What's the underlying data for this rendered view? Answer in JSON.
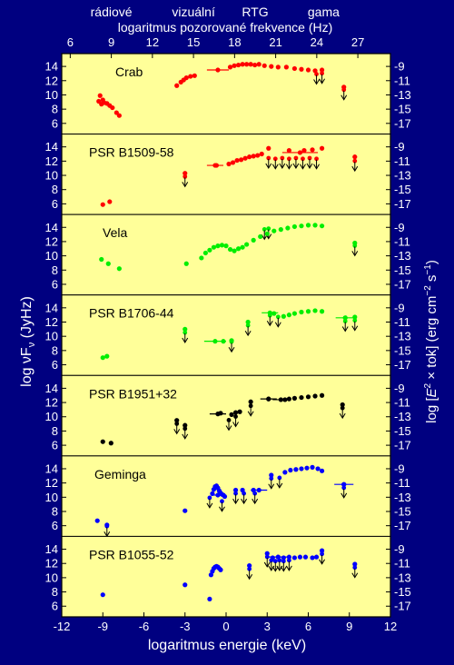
{
  "chart_data": {
    "type": "scatter",
    "x_axis_bottom": {
      "label": "logaritmus energie (keV)",
      "range": [
        -12,
        12
      ],
      "ticks": [
        -12,
        -9,
        -6,
        -3,
        0,
        3,
        6,
        9,
        12
      ]
    },
    "x_axis_top": {
      "label": "logaritmus pozorované frekvence (Hz)",
      "ticks": [
        6,
        9,
        12,
        15,
        18,
        21,
        24,
        27
      ],
      "band_labels": [
        {
          "text": "rádiové",
          "at_hz": 9
        },
        {
          "text": "vizuální",
          "at_hz": 15
        },
        {
          "text": "RTG",
          "at_hz": 19.5
        },
        {
          "text": "gama",
          "at_hz": 24.5
        }
      ]
    },
    "y_axis_left": {
      "label": "log νF",
      "label_subscript": "ν",
      "label_unit": " (JyHz)",
      "range": [
        4.5,
        15.8
      ],
      "ticks": [
        6,
        8,
        10,
        12,
        14
      ]
    },
    "y_axis_right": {
      "label_prefix": "log [",
      "label_E": "E",
      "label_sup": "2",
      "label_mid": " × tok] (erg cm",
      "label_sup2": "−2",
      "label_mid2": " s",
      "label_sup3": "−1",
      "label_end": ")",
      "ticks": [
        "-9",
        "-11",
        "-13",
        "-15",
        "-17"
      ],
      "ticks_at_left_value": [
        14,
        12,
        10,
        8,
        6
      ]
    },
    "colors": {
      "background": "#000080",
      "panel": "#ffff99",
      "red": "#ff0000",
      "green": "#00ee00",
      "black": "#000000",
      "blue": "#0000ff"
    },
    "panels": [
      {
        "name": "Crab",
        "color": "red",
        "points": [
          [
            -9.2,
            9.9
          ],
          [
            -9.3,
            9.1
          ],
          [
            -9.1,
            8.7
          ],
          [
            -9.0,
            9.3
          ],
          [
            -8.9,
            8.9
          ],
          [
            -8.7,
            8.8
          ],
          [
            -8.5,
            8.5
          ],
          [
            -8.3,
            8.2
          ],
          [
            -8.0,
            7.5
          ],
          [
            -7.8,
            7.1
          ],
          [
            -3.6,
            11.3
          ],
          [
            -3.3,
            11.8
          ],
          [
            -3.1,
            12.1
          ],
          [
            -2.9,
            12.4
          ],
          [
            -2.6,
            12.6
          ],
          [
            -2.3,
            12.7
          ],
          [
            0.3,
            13.9
          ],
          [
            0.6,
            14.1
          ],
          [
            0.9,
            14.2
          ],
          [
            1.2,
            14.3
          ],
          [
            1.5,
            14.3
          ],
          [
            1.8,
            14.3
          ],
          [
            2.1,
            14.2
          ],
          [
            2.4,
            14.3
          ],
          [
            2.8,
            14.1
          ],
          [
            3.3,
            14.0
          ],
          [
            3.8,
            13.9
          ],
          [
            4.4,
            13.9
          ],
          [
            5.0,
            13.7
          ],
          [
            5.5,
            13.6
          ],
          [
            6.0,
            13.5
          ],
          [
            6.5,
            13.4
          ],
          [
            7.0,
            13.5
          ],
          [
            8.6,
            11.1
          ]
        ],
        "errorbars": [
          [
            -0.6,
            13.5,
            0.8
          ]
        ],
        "upper_limits": [
          [
            6.6,
            12.8
          ],
          [
            7.0,
            12.9
          ],
          [
            8.6,
            10.6
          ]
        ]
      },
      {
        "name": "PSR B1509-58",
        "color": "red",
        "points": [
          [
            -9.0,
            5.9
          ],
          [
            -8.5,
            6.3
          ],
          [
            -3.0,
            10.3
          ],
          [
            -0.7,
            11.4
          ],
          [
            0.2,
            11.6
          ],
          [
            0.5,
            11.8
          ],
          [
            0.8,
            12.1
          ],
          [
            1.1,
            12.2
          ],
          [
            1.4,
            12.4
          ],
          [
            1.7,
            12.6
          ],
          [
            2.0,
            12.7
          ],
          [
            2.3,
            12.8
          ],
          [
            2.6,
            13.0
          ],
          [
            3.1,
            13.8
          ],
          [
            4.6,
            13.5
          ],
          [
            5.7,
            13.5
          ],
          [
            6.3,
            13.6
          ],
          [
            7.0,
            13.8
          ],
          [
            9.4,
            12.6
          ]
        ],
        "errorbars": [
          [
            -0.8,
            11.4,
            0.6
          ],
          [
            5.4,
            13.2,
            1.3
          ]
        ],
        "upper_limits": [
          [
            -3.0,
            9.7
          ],
          [
            3.1,
            12.3
          ],
          [
            3.6,
            12.2
          ],
          [
            4.1,
            12.3
          ],
          [
            4.6,
            12.2
          ],
          [
            5.1,
            12.3
          ],
          [
            5.6,
            12.2
          ],
          [
            6.1,
            12.3
          ],
          [
            6.6,
            12.2
          ],
          [
            9.4,
            11.9
          ]
        ]
      },
      {
        "name": "Vela",
        "color": "green",
        "points": [
          [
            -9.1,
            9.5
          ],
          [
            -8.6,
            8.9
          ],
          [
            -7.8,
            8.2
          ],
          [
            -2.9,
            8.9
          ],
          [
            -1.8,
            9.7
          ],
          [
            -1.5,
            10.4
          ],
          [
            -1.2,
            10.8
          ],
          [
            -0.9,
            11.2
          ],
          [
            -0.6,
            11.4
          ],
          [
            -0.3,
            11.5
          ],
          [
            0.0,
            11.4
          ],
          [
            0.3,
            10.9
          ],
          [
            0.6,
            10.7
          ],
          [
            0.9,
            11.0
          ],
          [
            1.2,
            11.2
          ],
          [
            1.5,
            11.6
          ],
          [
            2.0,
            12.2
          ],
          [
            2.5,
            12.7
          ],
          [
            3.0,
            13.1
          ],
          [
            3.5,
            13.5
          ],
          [
            4.0,
            13.7
          ],
          [
            4.5,
            13.9
          ],
          [
            5.0,
            14.1
          ],
          [
            5.5,
            14.2
          ],
          [
            6.0,
            14.3
          ],
          [
            6.5,
            14.3
          ],
          [
            7.0,
            14.2
          ],
          [
            9.4,
            11.8
          ]
        ],
        "errorbars": [],
        "upper_limits": [
          [
            2.8,
            13.6
          ],
          [
            3.1,
            13.7
          ],
          [
            9.4,
            11.3
          ]
        ]
      },
      {
        "name": "PSR B1706-44",
        "color": "green",
        "points": [
          [
            -9.0,
            7.0
          ],
          [
            -8.7,
            7.2
          ],
          [
            -3.0,
            11.0
          ],
          [
            -0.2,
            9.3
          ],
          [
            0.4,
            9.4
          ],
          [
            1.6,
            12.0
          ],
          [
            3.5,
            13.2
          ],
          [
            4.2,
            12.8
          ],
          [
            4.6,
            13.0
          ],
          [
            5.0,
            13.2
          ],
          [
            5.5,
            13.4
          ],
          [
            6.0,
            13.5
          ],
          [
            6.5,
            13.6
          ],
          [
            7.0,
            13.5
          ],
          [
            8.7,
            12.6
          ],
          [
            9.4,
            12.7
          ]
        ],
        "errorbars": [
          [
            -0.8,
            9.3,
            0.8
          ],
          [
            3.2,
            13.3,
            0.6
          ],
          [
            8.7,
            12.6,
            0.7
          ]
        ],
        "upper_limits": [
          [
            -3.0,
            10.4
          ],
          [
            0.4,
            9.1
          ],
          [
            1.6,
            11.4
          ],
          [
            3.2,
            12.8
          ],
          [
            3.8,
            12.6
          ],
          [
            8.7,
            12.0
          ],
          [
            9.4,
            12.1
          ]
        ]
      },
      {
        "name": "PSR B1951+32",
        "color": "black",
        "points": [
          [
            -9.0,
            6.5
          ],
          [
            -8.4,
            6.3
          ],
          [
            -3.6,
            9.5
          ],
          [
            -3.0,
            8.8
          ],
          [
            -0.4,
            10.5
          ],
          [
            0.4,
            10.3
          ],
          [
            0.7,
            10.6
          ],
          [
            1.0,
            10.7
          ],
          [
            1.8,
            12.1
          ],
          [
            3.1,
            12.5
          ],
          [
            4.3,
            12.4
          ],
          [
            4.6,
            12.5
          ],
          [
            5.0,
            12.6
          ],
          [
            5.5,
            12.7
          ],
          [
            6.0,
            12.8
          ],
          [
            6.5,
            12.9
          ],
          [
            7.0,
            13.0
          ],
          [
            8.5,
            11.7
          ]
        ],
        "errorbars": [
          [
            -0.6,
            10.4,
            0.6
          ],
          [
            3.1,
            12.5,
            0.6
          ],
          [
            4.0,
            12.4,
            0.6
          ]
        ],
        "upper_limits": [
          [
            -3.6,
            8.9
          ],
          [
            -3.0,
            8.2
          ],
          [
            0.2,
            9.4
          ],
          [
            0.7,
            9.9
          ],
          [
            1.8,
            11.4
          ],
          [
            8.5,
            11.1
          ]
        ]
      },
      {
        "name": "Geminga",
        "color": "blue",
        "points": [
          [
            -9.4,
            6.7
          ],
          [
            -8.7,
            6.1
          ],
          [
            -3.0,
            8.1
          ],
          [
            -1.0,
            10.5
          ],
          [
            -0.9,
            11.1
          ],
          [
            -0.8,
            11.5
          ],
          [
            -0.7,
            11.6
          ],
          [
            -0.6,
            11.3
          ],
          [
            -0.5,
            10.9
          ],
          [
            -0.4,
            10.6
          ],
          [
            -0.3,
            10.4
          ],
          [
            -0.2,
            10.3
          ],
          [
            -0.1,
            10.1
          ],
          [
            0.7,
            11.0
          ],
          [
            1.2,
            11.0
          ],
          [
            2.0,
            11.0
          ],
          [
            3.3,
            13.1
          ],
          [
            4.3,
            13.5
          ],
          [
            4.7,
            13.8
          ],
          [
            5.1,
            13.9
          ],
          [
            5.5,
            14.0
          ],
          [
            5.9,
            14.1
          ],
          [
            6.3,
            14.2
          ],
          [
            6.7,
            14.0
          ],
          [
            7.0,
            13.7
          ],
          [
            8.6,
            11.8
          ]
        ],
        "errorbars": [
          [
            -0.6,
            10.3,
            0.5
          ],
          [
            2.4,
            11.0,
            0.6
          ],
          [
            8.6,
            11.8,
            0.7
          ]
        ],
        "upper_limits": [
          [
            -8.7,
            5.8
          ],
          [
            -1.2,
            9.8
          ],
          [
            -0.3,
            9.3
          ],
          [
            0.7,
            10.4
          ],
          [
            1.3,
            10.4
          ],
          [
            2.1,
            10.4
          ],
          [
            3.3,
            12.5
          ],
          [
            3.9,
            12.6
          ],
          [
            8.6,
            11.2
          ]
        ]
      },
      {
        "name": "PSR B1055-52",
        "color": "blue",
        "points": [
          [
            -9.0,
            7.6
          ],
          [
            -3.0,
            9.0
          ],
          [
            -1.2,
            7.0
          ],
          [
            -1.1,
            10.4
          ],
          [
            -1.0,
            10.9
          ],
          [
            -0.9,
            11.3
          ],
          [
            -0.8,
            11.5
          ],
          [
            -0.7,
            11.6
          ],
          [
            -0.6,
            11.5
          ],
          [
            -0.5,
            11.3
          ],
          [
            -0.4,
            11.1
          ],
          [
            1.7,
            11.7
          ],
          [
            3.0,
            13.4
          ],
          [
            3.4,
            12.8
          ],
          [
            3.8,
            12.9
          ],
          [
            4.2,
            12.8
          ],
          [
            4.6,
            12.9
          ],
          [
            5.0,
            12.8
          ],
          [
            5.4,
            12.9
          ],
          [
            5.8,
            12.9
          ],
          [
            6.3,
            12.8
          ],
          [
            6.6,
            12.9
          ],
          [
            7.0,
            13.8
          ],
          [
            9.4,
            11.9
          ]
        ],
        "errorbars": [
          [
            3.8,
            12.9,
            0.8
          ]
        ],
        "upper_limits": [
          [
            1.7,
            11.1
          ],
          [
            3.0,
            12.8
          ],
          [
            3.3,
            12.3
          ],
          [
            3.6,
            12.2
          ],
          [
            3.9,
            12.3
          ],
          [
            4.2,
            12.2
          ],
          [
            4.6,
            12.3
          ],
          [
            7.0,
            13.2
          ],
          [
            9.4,
            11.3
          ]
        ]
      }
    ]
  }
}
